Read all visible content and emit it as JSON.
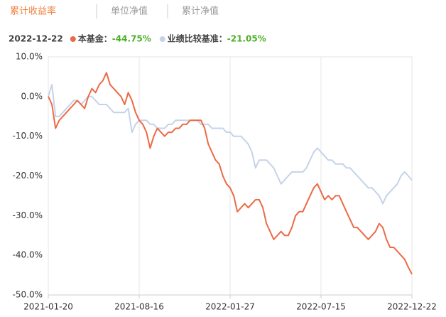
{
  "tabs": [
    "累计收益率",
    "单位净值",
    "累计净值"
  ],
  "chart_data": {
    "type": "line",
    "legend_date": "2022-12-22",
    "categories": [
      "2021-01-20",
      null,
      null,
      null,
      null,
      null,
      null,
      null,
      null,
      null,
      null,
      null,
      null,
      null,
      null,
      null,
      null,
      null,
      null,
      null,
      null,
      null,
      null,
      null,
      null,
      "2021-08-16",
      null,
      null,
      null,
      null,
      null,
      null,
      null,
      null,
      null,
      null,
      null,
      null,
      null,
      null,
      null,
      null,
      null,
      null,
      null,
      null,
      null,
      null,
      null,
      null,
      "2022-01-27",
      null,
      null,
      null,
      null,
      null,
      null,
      null,
      null,
      null,
      null,
      null,
      null,
      null,
      null,
      null,
      null,
      null,
      null,
      null,
      null,
      null,
      null,
      null,
      null,
      "2022-07-15",
      null,
      null,
      null,
      null,
      null,
      null,
      null,
      null,
      null,
      null,
      null,
      null,
      null,
      null,
      null,
      null,
      null,
      null,
      null,
      null,
      null,
      null,
      null,
      null,
      "2022-12-22"
    ],
    "series": [
      {
        "name": "本基金：",
        "color": "#ec6a45",
        "latest_label": "-44.75%",
        "values": [
          0,
          -2,
          -8,
          -6,
          -5,
          -4,
          -3,
          -2,
          -1,
          -2,
          -3,
          0,
          2,
          1,
          3,
          4,
          6,
          3,
          2,
          1,
          0,
          -2,
          1,
          -1,
          -4,
          -6,
          -7,
          -9,
          -13,
          -10,
          -8,
          -9,
          -10,
          -9,
          -9,
          -8,
          -8,
          -7,
          -7,
          -6,
          -6,
          -6,
          -6,
          -8,
          -12,
          -14,
          -16,
          -17,
          -20,
          -22,
          -23,
          -25,
          -29,
          -28,
          -27,
          -28,
          -27,
          -26,
          -26,
          -28,
          -32,
          -34,
          -36,
          -35,
          -34,
          -35,
          -35,
          -33,
          -30,
          -29,
          -29,
          -27,
          -25,
          -23,
          -22,
          -24,
          -26,
          -25,
          -26,
          -25,
          -25,
          -27,
          -29,
          -31,
          -33,
          -33,
          -34,
          -35,
          -36,
          -35,
          -34,
          -32,
          -33,
          -36,
          -38,
          -38,
          -39,
          -40,
          -41,
          -43,
          -44.75
        ]
      },
      {
        "name": "业绩比较基准：",
        "color": "#c5d3e8",
        "latest_label": "-21.05%",
        "values": [
          0,
          3,
          -5,
          -5,
          -4,
          -3,
          -2,
          -1,
          -1,
          -2,
          -1,
          0,
          0,
          -1,
          -2,
          -2,
          -2,
          -3,
          -4,
          -4,
          -4,
          -4,
          -3,
          -9,
          -7,
          -6,
          -6,
          -6,
          -7,
          -7,
          -8,
          -8,
          -8,
          -7,
          -7,
          -6,
          -6,
          -6,
          -6,
          -6,
          -6,
          -6,
          -7,
          -7,
          -7,
          -8,
          -8,
          -8,
          -8,
          -9,
          -9,
          -10,
          -10,
          -10,
          -11,
          -12,
          -14,
          -18,
          -16,
          -16,
          -16,
          -17,
          -18,
          -20,
          -22,
          -21,
          -20,
          -19,
          -19,
          -19,
          -19,
          -18,
          -16,
          -14,
          -13,
          -14,
          -15,
          -16,
          -16,
          -17,
          -17,
          -17,
          -18,
          -18,
          -19,
          -20,
          -21,
          -22,
          -23,
          -23,
          -24,
          -25,
          -27,
          -25,
          -24,
          -23,
          -22,
          -20,
          -19,
          -20,
          -21.05
        ]
      }
    ],
    "ylim": [
      -50,
      10
    ],
    "yticks": [
      {
        "value": 10,
        "label": "10.0%"
      },
      {
        "value": 0,
        "label": "0.0%"
      },
      {
        "value": -10,
        "label": "-10.0%"
      },
      {
        "value": -20,
        "label": "-20.0%"
      },
      {
        "value": -30,
        "label": "-30.0%"
      },
      {
        "value": -40,
        "label": "-40.0%"
      },
      {
        "value": -50,
        "label": "-50.0%"
      }
    ],
    "grid": "vertical"
  }
}
